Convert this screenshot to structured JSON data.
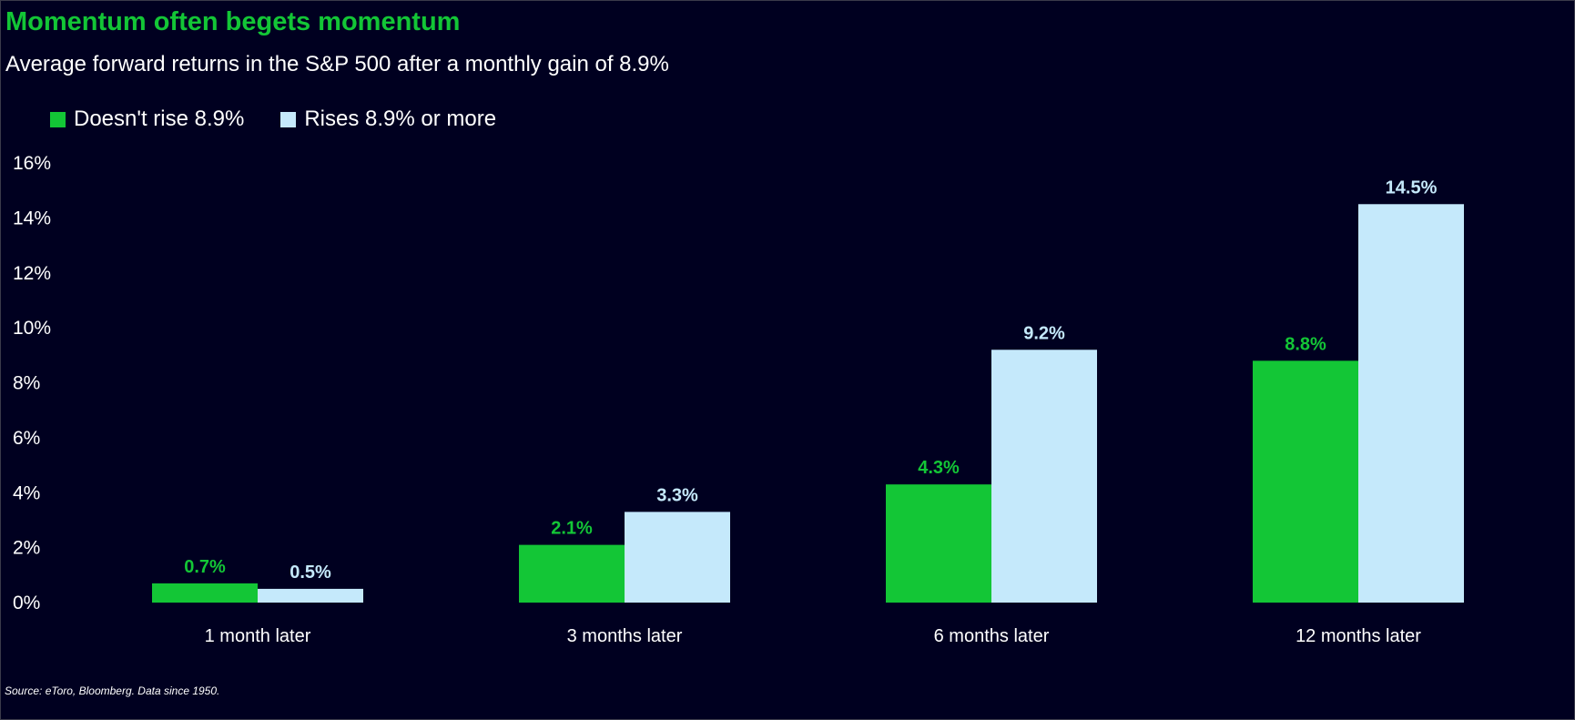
{
  "title": "Momentum often begets momentum",
  "subtitle": "Average forward returns in the S&P 500 after a monthly gain of 8.9%",
  "source": "Source: eToro, Bloomberg. Data since 1950.",
  "colors": {
    "background": "#000020",
    "title": "#13c636",
    "series_a": "#13c636",
    "series_b": "#c5e9fb"
  },
  "chart_data": {
    "type": "bar",
    "title": "Momentum often begets momentum",
    "subtitle": "Average forward returns in the S&P 500 after a monthly gain of 8.9%",
    "categories": [
      "1 month later",
      "3 months later",
      "6 months later",
      "12 months later"
    ],
    "series": [
      {
        "name": "Doesn't rise 8.9%",
        "values": [
          0.7,
          2.1,
          4.3,
          8.8
        ],
        "labels": [
          "0.7%",
          "2.1%",
          "4.3%",
          "8.8%"
        ],
        "color": "#13c636"
      },
      {
        "name": "Rises 8.9% or more",
        "values": [
          0.5,
          3.3,
          9.2,
          14.5
        ],
        "labels": [
          "0.5%",
          "3.3%",
          "9.2%",
          "14.5%"
        ],
        "color": "#c5e9fb"
      }
    ],
    "yticks": [
      "0%",
      "2%",
      "4%",
      "6%",
      "8%",
      "10%",
      "12%",
      "14%",
      "16%"
    ],
    "ylim": [
      0,
      16
    ],
    "grid": false,
    "legend_position": "top-left"
  }
}
